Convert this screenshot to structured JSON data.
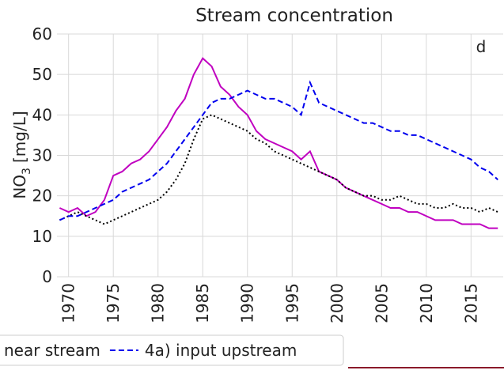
{
  "chart_data": {
    "type": "line",
    "title": "Stream concentration",
    "ylabel": {
      "main": "NO",
      "sub": "3",
      "unit": "[mg/L]"
    },
    "annotation": "d",
    "x": [
      1969,
      1970,
      1971,
      1972,
      1973,
      1974,
      1975,
      1976,
      1977,
      1978,
      1979,
      1980,
      1981,
      1982,
      1983,
      1984,
      1985,
      1986,
      1987,
      1988,
      1989,
      1990,
      1991,
      1992,
      1993,
      1994,
      1995,
      1996,
      1997,
      1998,
      1999,
      2000,
      2001,
      2002,
      2003,
      2004,
      2005,
      2006,
      2007,
      2008,
      2009,
      2010,
      2011,
      2012,
      2013,
      2014,
      2015,
      2016,
      2017,
      2018
    ],
    "series": [
      {
        "color": "#c000c0",
        "dash": "solid",
        "values": [
          17,
          16,
          17,
          15,
          16,
          19,
          25,
          26,
          28,
          29,
          31,
          34,
          37,
          41,
          44,
          50,
          54,
          52,
          47,
          45,
          42,
          40,
          36,
          34,
          33,
          32,
          31,
          29,
          31,
          26,
          25,
          24,
          22,
          21,
          20,
          19,
          18,
          17,
          17,
          16,
          16,
          15,
          14,
          14,
          14,
          13,
          13,
          13,
          12,
          12
        ]
      },
      {
        "name": "near stream",
        "color": "#000000",
        "dash": "dotted",
        "values": [
          14,
          15,
          16,
          15,
          14,
          13,
          14,
          15,
          16,
          17,
          18,
          19,
          21,
          24,
          28,
          34,
          39,
          40,
          39,
          38,
          37,
          36,
          34,
          33,
          31,
          30,
          29,
          28,
          27,
          26,
          25,
          24,
          22,
          21,
          20,
          20,
          19,
          19,
          20,
          19,
          18,
          18,
          17,
          17,
          18,
          17,
          17,
          16,
          17,
          16
        ]
      },
      {
        "name": "4a) input upstream",
        "color": "#0000ee",
        "dash": "dashed",
        "values": [
          14,
          15,
          15,
          16,
          17,
          18,
          19,
          21,
          22,
          23,
          24,
          26,
          28,
          31,
          34,
          37,
          40,
          43,
          44,
          44,
          45,
          46,
          45,
          44,
          44,
          43,
          42,
          40,
          48,
          43,
          42,
          41,
          40,
          39,
          38,
          38,
          37,
          36,
          36,
          35,
          35,
          34,
          33,
          32,
          31,
          30,
          29,
          27,
          26,
          24
        ]
      }
    ],
    "xlim": [
      1968.7,
      2018.6
    ],
    "xticks": [
      1970,
      1975,
      1980,
      1985,
      1990,
      1995,
      2000,
      2005,
      2010,
      2015
    ],
    "ylim": [
      0,
      60
    ],
    "yticks": [
      0,
      10,
      20,
      30,
      40,
      50,
      60
    ],
    "grid": true
  }
}
